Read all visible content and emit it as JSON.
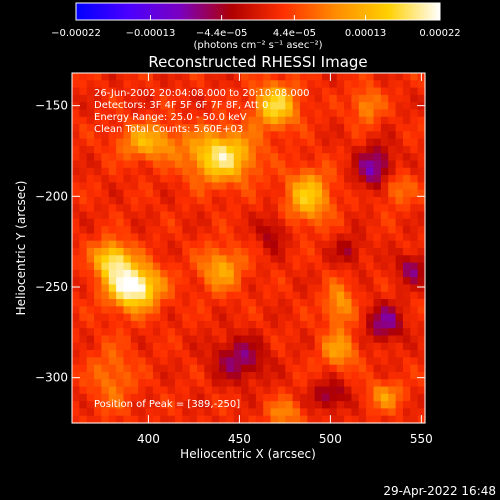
{
  "chart_data": {
    "type": "heatmap",
    "title": "Reconstructed RHESSI Image",
    "xlabel": "Heliocentric X (arcsec)",
    "ylabel": "Heliocentric Y (arcsec)",
    "xlim": [
      358,
      552
    ],
    "ylim": [
      -325,
      -132
    ],
    "x_ticks": [
      400,
      450,
      500,
      550
    ],
    "x_tick_labels": [
      "400",
      "450",
      "500",
      "550"
    ],
    "y_ticks": [
      -150,
      -200,
      -250,
      -300
    ],
    "y_tick_labels": [
      "−150",
      "−200",
      "−250",
      "−300"
    ],
    "colorbar": {
      "range": [
        -0.00022,
        0.00022
      ],
      "tick_values": [
        -0.00022,
        -0.00013,
        -4.4e-05,
        4.4e-05,
        0.00013,
        0.00022
      ],
      "tick_labels": [
        "−0.00022",
        "−0.00013",
        "−4.4e−05",
        "4.4e−05",
        "0.00013",
        "0.00022"
      ],
      "units_label": "(photons cm⁻² s⁻¹ asec⁻²)",
      "colormap": [
        "#0000ff",
        "#4a00ff",
        "#7a00c0",
        "#b00000",
        "#ff3000",
        "#ff8c00",
        "#ffd000",
        "#ffffff"
      ]
    },
    "annotations": [
      "26-Jun-2002 20:04:08.000 to 20:10:08.000",
      "Detectors: 3F 4F 5F 6F 7F 8F, Att 0",
      "Energy Range: 25.0 - 50.0 keV",
      "Clean    Total Counts: 5.60E+03"
    ],
    "peak_label": "Position of Peak = [389,-250]",
    "peak": [
      389,
      -250
    ],
    "hotspots": [
      {
        "x": 392,
        "y": -250,
        "sx": 14,
        "sy": 12,
        "v": 0.00022
      },
      {
        "x": 380,
        "y": -235,
        "sx": 10,
        "sy": 10,
        "v": 0.00016
      },
      {
        "x": 440,
        "y": -178,
        "sx": 18,
        "sy": 14,
        "v": 0.00017
      },
      {
        "x": 470,
        "y": -150,
        "sx": 12,
        "sy": 12,
        "v": 0.00015
      },
      {
        "x": 488,
        "y": -200,
        "sx": 12,
        "sy": 14,
        "v": 0.00013
      },
      {
        "x": 400,
        "y": -170,
        "sx": 16,
        "sy": 10,
        "v": 0.00011
      },
      {
        "x": 440,
        "y": -240,
        "sx": 12,
        "sy": 12,
        "v": 0.0001
      },
      {
        "x": 505,
        "y": -285,
        "sx": 10,
        "sy": 10,
        "v": 9e-05
      },
      {
        "x": 530,
        "y": -310,
        "sx": 10,
        "sy": 8,
        "v": 8e-05
      },
      {
        "x": 380,
        "y": -300,
        "sx": 12,
        "sy": 18,
        "v": 6e-05
      },
      {
        "x": 535,
        "y": -195,
        "sx": 10,
        "sy": 10,
        "v": 7e-05
      },
      {
        "x": 505,
        "y": -260,
        "sx": 8,
        "sy": 12,
        "v": 9e-05
      },
      {
        "x": 520,
        "y": -150,
        "sx": 8,
        "sy": 10,
        "v": 8e-05
      },
      {
        "x": 475,
        "y": -320,
        "sx": 10,
        "sy": 8,
        "v": 7e-05
      }
    ],
    "coldspots": [
      {
        "x": 525,
        "y": -185,
        "sx": 10,
        "sy": 12,
        "v": -0.00012
      },
      {
        "x": 530,
        "y": -270,
        "sx": 10,
        "sy": 10,
        "v": -0.0001
      },
      {
        "x": 500,
        "y": -310,
        "sx": 10,
        "sy": 8,
        "v": -8e-05
      },
      {
        "x": 450,
        "y": -290,
        "sx": 14,
        "sy": 12,
        "v": -9e-05
      },
      {
        "x": 468,
        "y": -220,
        "sx": 8,
        "sy": 10,
        "v": -6e-05
      },
      {
        "x": 545,
        "y": -240,
        "sx": 8,
        "sy": 8,
        "v": -9e-05
      },
      {
        "x": 510,
        "y": -230,
        "sx": 8,
        "sy": 8,
        "v": -6e-05
      }
    ]
  },
  "timestamp": "29-Apr-2022 16:48"
}
